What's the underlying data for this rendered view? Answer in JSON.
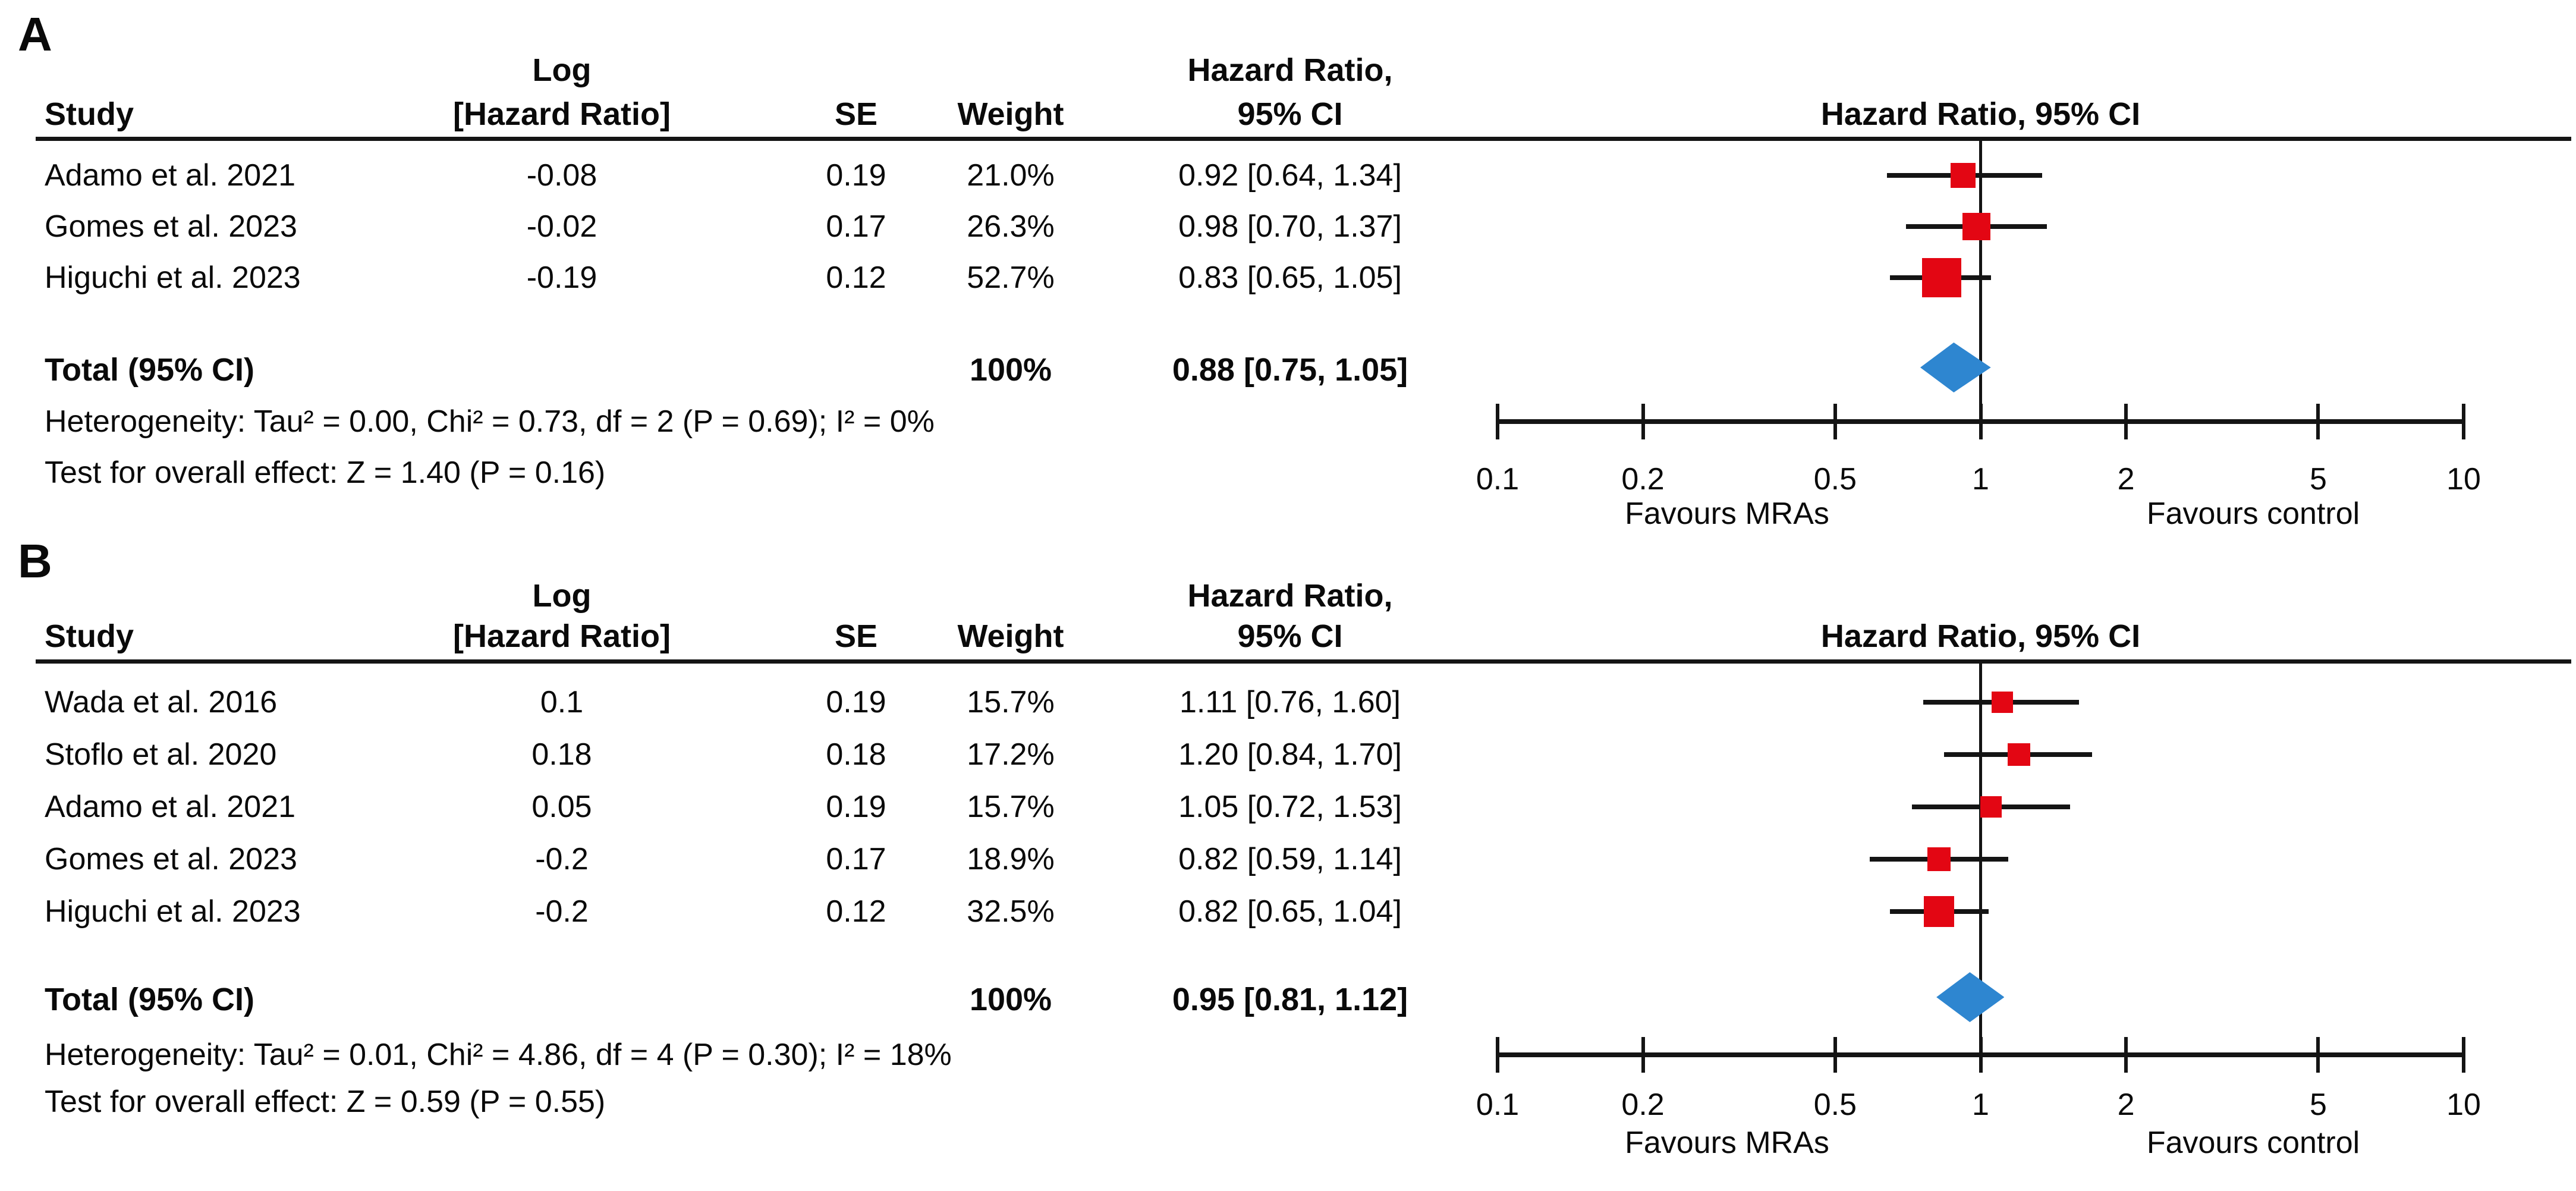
{
  "figure": {
    "background": "#ffffff",
    "text_color": "#0a0a0a",
    "square_color": "#e30613",
    "diamond_color": "#2e86d0",
    "line_color": "#141414"
  },
  "chart_data": [
    {
      "type": "forest",
      "panel_label": "A",
      "columns": {
        "study": "Study",
        "log_line1": "Log",
        "log_line2": "[Hazard Ratio]",
        "se": "SE",
        "weight": "Weight",
        "hr_line1": "Hazard Ratio,",
        "hr_line2": "95% CI"
      },
      "plot_header": "Hazard Ratio, 95% CI",
      "studies": [
        {
          "name": "Adamo et al. 2021",
          "log_hr": "-0.08",
          "se": "0.19",
          "weight": "21.0%",
          "hr_ci": "0.92 [0.64, 1.34]",
          "hr": 0.92,
          "ci": [
            0.64,
            1.34
          ],
          "weight_pct": 21.0
        },
        {
          "name": "Gomes et al. 2023",
          "log_hr": "-0.02",
          "se": "0.17",
          "weight": "26.3%",
          "hr_ci": "0.98 [0.70, 1.37]",
          "hr": 0.98,
          "ci": [
            0.7,
            1.37
          ],
          "weight_pct": 26.3
        },
        {
          "name": "Higuchi et al. 2023",
          "log_hr": "-0.19",
          "se": "0.12",
          "weight": "52.7%",
          "hr_ci": "0.83 [0.65, 1.05]",
          "hr": 0.83,
          "ci": [
            0.65,
            1.05
          ],
          "weight_pct": 52.7
        }
      ],
      "total": {
        "label": "Total (95% CI)",
        "weight": "100%",
        "hr_ci": "0.88 [0.75, 1.05]",
        "hr": 0.88,
        "ci": [
          0.75,
          1.05
        ]
      },
      "heterogeneity": "Heterogeneity: Tau² = 0.00, Chi² = 0.73, df = 2 (P = 0.69); I² = 0%",
      "overall_effect": "Test for overall effect: Z = 1.40 (P = 0.16)",
      "axis": {
        "scale": "log",
        "range": [
          0.1,
          10
        ],
        "tick_labels": [
          "0.1",
          "0.2",
          "0.5",
          "1",
          "2",
          "5",
          "10"
        ],
        "tick_values": [
          0.1,
          0.2,
          0.5,
          1,
          2,
          5,
          10
        ],
        "left_label": "Favours MRAs",
        "right_label": "Favours control"
      }
    },
    {
      "type": "forest",
      "panel_label": "B",
      "columns": {
        "study": "Study",
        "log_line1": "Log",
        "log_line2": "[Hazard Ratio]",
        "se": "SE",
        "weight": "Weight",
        "hr_line1": "Hazard Ratio,",
        "hr_line2": "95% CI"
      },
      "plot_header": "Hazard Ratio, 95% CI",
      "studies": [
        {
          "name": "Wada et al. 2016",
          "log_hr": "0.1",
          "se": "0.19",
          "weight": "15.7%",
          "hr_ci": "1.11 [0.76, 1.60]",
          "hr": 1.11,
          "ci": [
            0.76,
            1.6
          ],
          "weight_pct": 15.7
        },
        {
          "name": "Stoflo et al. 2020",
          "log_hr": "0.18",
          "se": "0.18",
          "weight": "17.2%",
          "hr_ci": "1.20 [0.84, 1.70]",
          "hr": 1.2,
          "ci": [
            0.84,
            1.7
          ],
          "weight_pct": 17.2
        },
        {
          "name": "Adamo et al. 2021",
          "log_hr": "0.05",
          "se": "0.19",
          "weight": "15.7%",
          "hr_ci": "1.05 [0.72, 1.53]",
          "hr": 1.05,
          "ci": [
            0.72,
            1.53
          ],
          "weight_pct": 15.7
        },
        {
          "name": "Gomes et al. 2023",
          "log_hr": "-0.2",
          "se": "0.17",
          "weight": "18.9%",
          "hr_ci": "0.82 [0.59, 1.14]",
          "hr": 0.82,
          "ci": [
            0.59,
            1.14
          ],
          "weight_pct": 18.9
        },
        {
          "name": "Higuchi et al. 2023",
          "log_hr": "-0.2",
          "se": "0.12",
          "weight": "32.5%",
          "hr_ci": "0.82 [0.65, 1.04]",
          "hr": 0.82,
          "ci": [
            0.65,
            1.04
          ],
          "weight_pct": 32.5
        }
      ],
      "total": {
        "label": "Total (95% CI)",
        "weight": "100%",
        "hr_ci": "0.95 [0.81, 1.12]",
        "hr": 0.95,
        "ci": [
          0.81,
          1.12
        ]
      },
      "heterogeneity": "Heterogeneity: Tau² = 0.01, Chi² = 4.86, df = 4 (P = 0.30); I² = 18%",
      "overall_effect": "Test for overall effect: Z = 0.59 (P = 0.55)",
      "axis": {
        "scale": "log",
        "range": [
          0.1,
          10
        ],
        "tick_labels": [
          "0.1",
          "0.2",
          "0.5",
          "1",
          "2",
          "5",
          "10"
        ],
        "tick_values": [
          0.1,
          0.2,
          0.5,
          1,
          2,
          5,
          10
        ],
        "left_label": "Favours MRAs",
        "right_label": "Favours control"
      }
    }
  ]
}
